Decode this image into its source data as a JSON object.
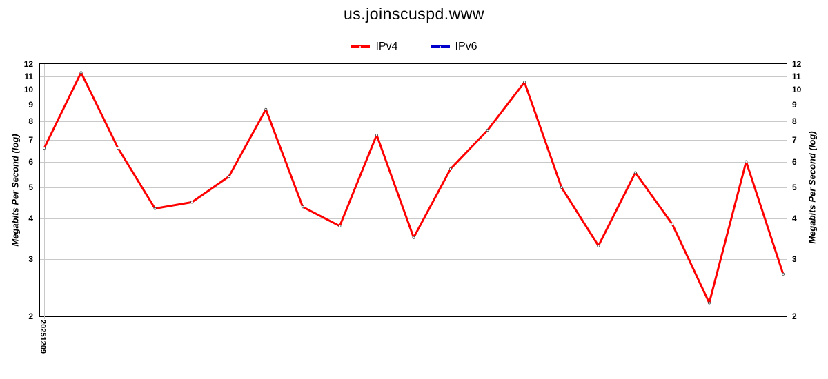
{
  "chart_data": {
    "type": "line",
    "title": "us.joinscuspd.www",
    "ylabel": "Megabits Per Second (log)",
    "ylabel_right": "Megabits Per Second (log)",
    "xlabel": "",
    "yscale": "log",
    "ylim": [
      2,
      12
    ],
    "y_ticks": [
      12,
      11,
      10,
      9,
      8,
      7,
      6,
      5,
      4,
      3,
      2
    ],
    "x_tick_labels": [
      "20251209"
    ],
    "grid": "horizontal",
    "legend_position": "top",
    "series": [
      {
        "name": "IPv4",
        "color": "#ff0000",
        "values": [
          6.6,
          11.3,
          6.6,
          4.3,
          4.5,
          5.4,
          8.7,
          4.35,
          3.8,
          7.25,
          3.5,
          5.7,
          7.5,
          10.55,
          5.0,
          3.3,
          5.55,
          3.85,
          2.2,
          6.0,
          2.7
        ]
      },
      {
        "name": "IPv6",
        "color": "#0000cc",
        "values": []
      }
    ]
  },
  "colors": {
    "ipv4": "#ff0000",
    "ipv6": "#0000cc",
    "grid": "#c9c9c9",
    "border": "#000000",
    "marker_fill": "#ffffff"
  }
}
